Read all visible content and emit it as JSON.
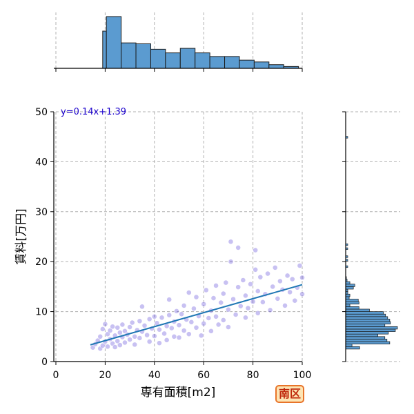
{
  "chart_data": {
    "type": "scatter",
    "xlabel": "専有面積[m2]",
    "ylabel": "賃料[万円]",
    "xlim": [
      0,
      100
    ],
    "ylim": [
      0,
      50
    ],
    "xticks": [
      "0",
      "20",
      "40",
      "60",
      "80",
      "100"
    ],
    "yticks": [
      "0",
      "10",
      "20",
      "30",
      "40",
      "50"
    ],
    "grid": true,
    "regression": {
      "label": "y=0.14x+1.39",
      "slope": 0.14,
      "intercept": 1.39,
      "x_range": [
        14,
        100
      ],
      "color": "#1f77b4"
    },
    "points": [
      {
        "x": 15,
        "y": 2.8
      },
      {
        "x": 16,
        "y": 3.5
      },
      {
        "x": 17,
        "y": 4.2
      },
      {
        "x": 18,
        "y": 2.6
      },
      {
        "x": 18,
        "y": 5.0
      },
      {
        "x": 19,
        "y": 3.2
      },
      {
        "x": 19,
        "y": 6.5
      },
      {
        "x": 20,
        "y": 4.0
      },
      {
        "x": 20,
        "y": 7.5
      },
      {
        "x": 21,
        "y": 3.0
      },
      {
        "x": 21,
        "y": 5.5
      },
      {
        "x": 22,
        "y": 4.5
      },
      {
        "x": 22,
        "y": 6.2
      },
      {
        "x": 23,
        "y": 3.6
      },
      {
        "x": 23,
        "y": 7.0
      },
      {
        "x": 24,
        "y": 5.2
      },
      {
        "x": 24,
        "y": 2.9
      },
      {
        "x": 25,
        "y": 6.8
      },
      {
        "x": 25,
        "y": 4.1
      },
      {
        "x": 26,
        "y": 5.8
      },
      {
        "x": 26,
        "y": 3.3
      },
      {
        "x": 27,
        "y": 7.4
      },
      {
        "x": 27,
        "y": 4.9
      },
      {
        "x": 28,
        "y": 6.1
      },
      {
        "x": 28,
        "y": 3.8
      },
      {
        "x": 29,
        "y": 5.4
      },
      {
        "x": 30,
        "y": 6.9
      },
      {
        "x": 30,
        "y": 4.4
      },
      {
        "x": 31,
        "y": 7.8
      },
      {
        "x": 32,
        "y": 5.0
      },
      {
        "x": 32,
        "y": 3.4
      },
      {
        "x": 33,
        "y": 6.3
      },
      {
        "x": 34,
        "y": 8.1
      },
      {
        "x": 34,
        "y": 4.7
      },
      {
        "x": 35,
        "y": 11.0
      },
      {
        "x": 35,
        "y": 6.0
      },
      {
        "x": 36,
        "y": 7.2
      },
      {
        "x": 37,
        "y": 5.3
      },
      {
        "x": 38,
        "y": 8.5
      },
      {
        "x": 38,
        "y": 4.0
      },
      {
        "x": 39,
        "y": 6.6
      },
      {
        "x": 40,
        "y": 9.0
      },
      {
        "x": 40,
        "y": 5.1
      },
      {
        "x": 41,
        "y": 7.7
      },
      {
        "x": 42,
        "y": 3.7
      },
      {
        "x": 42,
        "y": 6.4
      },
      {
        "x": 43,
        "y": 8.8
      },
      {
        "x": 44,
        "y": 5.6
      },
      {
        "x": 45,
        "y": 7.1
      },
      {
        "x": 45,
        "y": 4.3
      },
      {
        "x": 46,
        "y": 12.4
      },
      {
        "x": 46,
        "y": 9.3
      },
      {
        "x": 47,
        "y": 6.7
      },
      {
        "x": 48,
        "y": 8.0
      },
      {
        "x": 48,
        "y": 5.0
      },
      {
        "x": 49,
        "y": 10.1
      },
      {
        "x": 50,
        "y": 7.3
      },
      {
        "x": 50,
        "y": 4.8
      },
      {
        "x": 51,
        "y": 9.5
      },
      {
        "x": 52,
        "y": 6.2
      },
      {
        "x": 52,
        "y": 11.2
      },
      {
        "x": 53,
        "y": 8.4
      },
      {
        "x": 54,
        "y": 13.8
      },
      {
        "x": 54,
        "y": 5.5
      },
      {
        "x": 55,
        "y": 7.9
      },
      {
        "x": 56,
        "y": 10.6
      },
      {
        "x": 57,
        "y": 6.8
      },
      {
        "x": 57,
        "y": 12.9
      },
      {
        "x": 58,
        "y": 9.1
      },
      {
        "x": 59,
        "y": 5.2
      },
      {
        "x": 60,
        "y": 11.5
      },
      {
        "x": 60,
        "y": 7.6
      },
      {
        "x": 61,
        "y": 14.3
      },
      {
        "x": 62,
        "y": 8.7
      },
      {
        "x": 63,
        "y": 10.2
      },
      {
        "x": 63,
        "y": 6.1
      },
      {
        "x": 64,
        "y": 12.7
      },
      {
        "x": 65,
        "y": 15.2
      },
      {
        "x": 65,
        "y": 9.0
      },
      {
        "x": 66,
        "y": 7.4
      },
      {
        "x": 67,
        "y": 11.8
      },
      {
        "x": 68,
        "y": 13.6
      },
      {
        "x": 68,
        "y": 8.3
      },
      {
        "x": 69,
        "y": 15.8
      },
      {
        "x": 70,
        "y": 10.4
      },
      {
        "x": 70,
        "y": 6.9
      },
      {
        "x": 71,
        "y": 24.0
      },
      {
        "x": 71,
        "y": 20.0
      },
      {
        "x": 72,
        "y": 12.5
      },
      {
        "x": 73,
        "y": 9.4
      },
      {
        "x": 74,
        "y": 22.8
      },
      {
        "x": 74,
        "y": 14.9
      },
      {
        "x": 75,
        "y": 11.1
      },
      {
        "x": 76,
        "y": 16.3
      },
      {
        "x": 77,
        "y": 8.8
      },
      {
        "x": 77,
        "y": 13.2
      },
      {
        "x": 78,
        "y": 10.7
      },
      {
        "x": 79,
        "y": 15.5
      },
      {
        "x": 80,
        "y": 12.0
      },
      {
        "x": 81,
        "y": 22.3
      },
      {
        "x": 81,
        "y": 18.4
      },
      {
        "x": 82,
        "y": 14.1
      },
      {
        "x": 82,
        "y": 9.7
      },
      {
        "x": 83,
        "y": 16.9
      },
      {
        "x": 84,
        "y": 11.9
      },
      {
        "x": 85,
        "y": 13.5
      },
      {
        "x": 86,
        "y": 17.6
      },
      {
        "x": 87,
        "y": 10.3
      },
      {
        "x": 88,
        "y": 15.0
      },
      {
        "x": 89,
        "y": 18.8
      },
      {
        "x": 90,
        "y": 12.6
      },
      {
        "x": 91,
        "y": 16.1
      },
      {
        "x": 92,
        "y": 14.4
      },
      {
        "x": 93,
        "y": 11.2
      },
      {
        "x": 94,
        "y": 17.2
      },
      {
        "x": 95,
        "y": 13.9
      },
      {
        "x": 96,
        "y": 16.5
      },
      {
        "x": 97,
        "y": 12.2
      },
      {
        "x": 98,
        "y": 14.8
      },
      {
        "x": 99,
        "y": 19.2
      },
      {
        "x": 100,
        "y": 13.5
      },
      {
        "x": 100,
        "y": 16.8
      }
    ],
    "x_hist": {
      "bin_edges": [
        14,
        19,
        20.5,
        26.5,
        32.5,
        38.5,
        44.5,
        50.5,
        56.5,
        62.5,
        68.5,
        74.5,
        80.5,
        86.5,
        92.5,
        98.5,
        100
      ],
      "counts": [
        0,
        41,
        57,
        28,
        27,
        21,
        17,
        22,
        17,
        13,
        13,
        9,
        7,
        4,
        2,
        0
      ]
    },
    "y_hist": {
      "bin_edges": [
        2.5,
        3.0,
        3.5,
        4.0,
        4.5,
        5.0,
        5.5,
        6.0,
        6.5,
        7.0,
        7.5,
        8.0,
        8.5,
        9.0,
        9.5,
        10.0,
        10.5,
        11.0,
        11.5,
        12.0,
        12.5,
        13.0,
        13.5,
        14.0,
        14.5,
        15.0,
        15.5,
        16.0,
        16.5,
        17.0,
        17.5,
        18.0,
        18.5,
        19.0,
        19.5,
        20.0,
        20.5,
        21.0
      ],
      "counts": [
        20,
        9,
        63,
        59,
        56,
        46,
        61,
        71,
        74,
        56,
        64,
        63,
        60,
        57,
        54,
        34,
        19,
        6,
        19,
        18,
        5,
        6,
        3,
        3,
        11,
        13,
        6,
        2,
        1,
        0,
        0,
        0,
        0,
        0,
        0,
        0,
        0
      ],
      "extra_points": [
        {
          "y": 44.9,
          "count": 1
        },
        {
          "y": 23.4,
          "count": 1
        },
        {
          "y": 22.6,
          "count": 1
        },
        {
          "y": 21.0,
          "count": 1
        },
        {
          "y": 20.3,
          "count": 1
        },
        {
          "y": 19.0,
          "count": 1
        }
      ]
    },
    "colors": {
      "points": "#3b1fd0",
      "hist": "#5b9bd0",
      "grid": "#b0b0b0",
      "regression": "#1f77b4",
      "equation_text": "#1a00cc"
    }
  },
  "badge": {
    "label": "南区"
  }
}
